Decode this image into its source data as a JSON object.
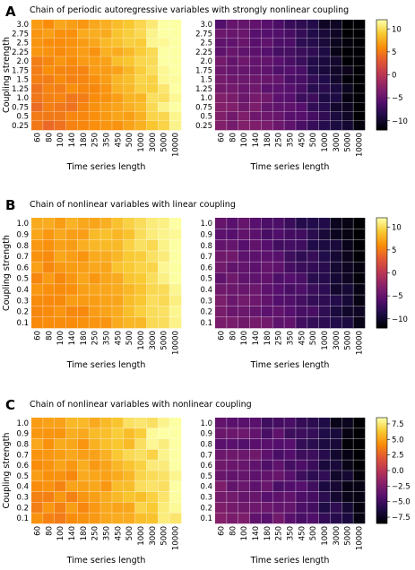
{
  "chart_data": {
    "type": "heatmap",
    "x_categories": [
      "60",
      "80",
      "100",
      "140",
      "180",
      "250",
      "350",
      "450",
      "500",
      "1000",
      "3000",
      "5000",
      "10000"
    ],
    "panels": [
      {
        "letter": "A",
        "title": "Chain of periodic autoregressive variables with strongly nonlinear coupling",
        "y_categories": [
          "3.0",
          "2.75",
          "2.5",
          "2.25",
          "2.0",
          "1.75",
          "1.5",
          "1.25",
          "1.0",
          "0.75",
          "0.5",
          "0.25"
        ],
        "colorbar": {
          "min": -12,
          "max": 12,
          "ticks": [
            "10",
            "5",
            "0",
            "−5",
            "−10"
          ],
          "tick_values": [
            10,
            5,
            0,
            -5,
            -10
          ]
        },
        "left_pattern": {
          "base": 4.5,
          "x_gain": 7.0,
          "y_gain": 2.0,
          "x_power": 2.2
        },
        "right_pattern": {
          "base": -3.5,
          "x_gain": -8.5,
          "y_gain": -2.0,
          "x_power": 2.2
        }
      },
      {
        "letter": "B",
        "title": "Chain of nonlinear variables with linear coupling",
        "y_categories": [
          "1.0",
          "0.9",
          "0.8",
          "0.7",
          "0.6",
          "0.5",
          "0.4",
          "0.3",
          "0.2",
          "0.1"
        ],
        "colorbar": {
          "min": -12,
          "max": 12,
          "ticks": [
            "10",
            "5",
            "0",
            "−5",
            "−10"
          ],
          "tick_values": [
            10,
            5,
            0,
            -5,
            -10
          ]
        },
        "left_pattern": {
          "base": 5.5,
          "x_gain": 5.5,
          "y_gain": 1.5,
          "x_power": 2.0
        },
        "right_pattern": {
          "base": -4.0,
          "x_gain": -7.0,
          "y_gain": -1.5,
          "x_power": 2.0
        }
      },
      {
        "letter": "C",
        "title": "Chain of nonlinear variables with nonlinear coupling",
        "y_categories": [
          "1.0",
          "0.9",
          "0.8",
          "0.7",
          "0.6",
          "0.5",
          "0.4",
          "0.3",
          "0.2",
          "0.1"
        ],
        "colorbar": {
          "min": -8.5,
          "max": 8.5,
          "ticks": [
            "7.5",
            "5.0",
            "2.5",
            "0.0",
            "−2.5",
            "−5.0",
            "−7.5"
          ],
          "tick_values": [
            7.5,
            5,
            2.5,
            0,
            -2.5,
            -5,
            -7.5
          ]
        },
        "left_pattern": {
          "base": 4.0,
          "x_gain": 4.0,
          "y_gain": 1.0,
          "x_power": 2.0
        },
        "right_pattern": {
          "base": -2.8,
          "x_gain": -5.0,
          "y_gain": -1.0,
          "x_power": 2.0
        }
      }
    ],
    "xlabel": "Time series length",
    "ylabel": "Coupling strength",
    "colormap": "inferno",
    "grid": true
  }
}
